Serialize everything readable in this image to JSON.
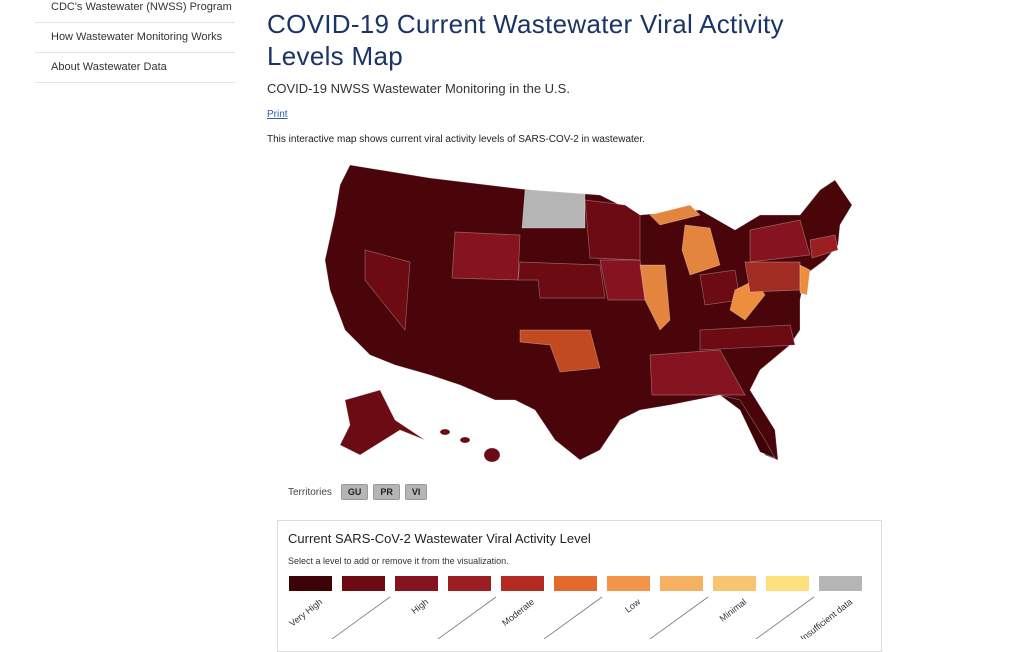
{
  "sidebar": {
    "items": [
      "CDC's Wastewater (NWSS) Program",
      "How Wastewater Monitoring Works",
      "About Wastewater Data"
    ]
  },
  "header": {
    "title": "COVID-19 Current Wastewater Viral Activity Levels Map",
    "subtitle": "COVID-19 NWSS Wastewater Monitoring in the U.S.",
    "print": "Print",
    "description": "This interactive map shows current viral activity levels of SARS-COV-2 in wastewater."
  },
  "territories": {
    "label": "Territories",
    "buttons": [
      "GU",
      "PR",
      "VI"
    ]
  },
  "legend": {
    "title": "Current SARS-CoV-2 Wastewater Viral Activity Level",
    "instruction": "Select a level to add or remove it from the visualization.",
    "levels": [
      {
        "color": "#3d0306",
        "label": "Very High"
      },
      {
        "color": "#6c0b13"
      },
      {
        "color": "#861420",
        "label": "High"
      },
      {
        "color": "#9b1e22"
      },
      {
        "color": "#b22a22",
        "label": "Moderate"
      },
      {
        "color": "#e36a2a"
      },
      {
        "color": "#f2954a",
        "label": "Low"
      },
      {
        "color": "#f6b160"
      },
      {
        "color": "#f8c56f",
        "label": "Minimal"
      },
      {
        "color": "#fbe07b"
      },
      {
        "color": "#b5b5b5",
        "label": "Insufficient data"
      }
    ]
  }
}
